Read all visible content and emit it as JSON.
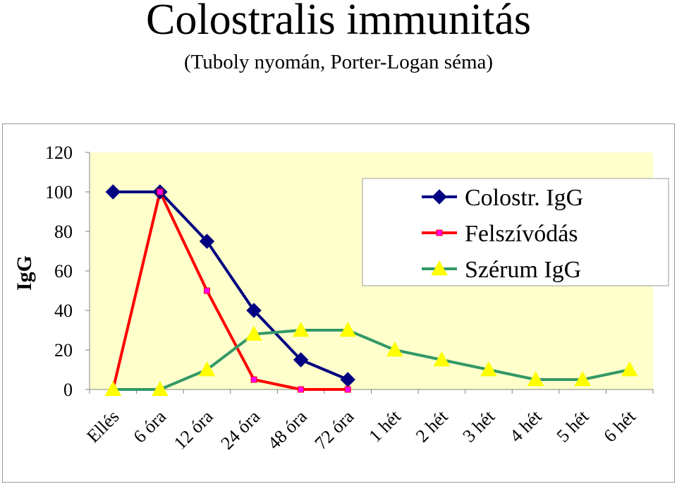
{
  "title": "Colostralis immunitás",
  "subtitle": "(Tuboly nyomán, Porter-Logan séma)",
  "chart_data": {
    "type": "line",
    "ylabel": "IgG",
    "xlabel": "",
    "ylim": [
      0,
      120
    ],
    "yticks": [
      0,
      20,
      40,
      60,
      80,
      100,
      120
    ],
    "categories": [
      "Ellés",
      "6 óra",
      "12 óra",
      "24 óra",
      "48 óra",
      "72 óra",
      "1 hét",
      "2 hét",
      "3 hét",
      "4 hét",
      "5 hét",
      "6 hét"
    ],
    "series": [
      {
        "name": "Colostr. IgG",
        "color": "#000080",
        "marker": "diamond",
        "values": [
          100,
          100,
          75,
          40,
          15,
          5,
          null,
          null,
          null,
          null,
          null,
          null
        ]
      },
      {
        "name": "Felszívódás",
        "color": "#ff0000",
        "marker": "square",
        "marker_fill": "#ff00ff",
        "values": [
          0,
          100,
          50,
          5,
          0,
          0,
          null,
          null,
          null,
          null,
          null,
          null
        ]
      },
      {
        "name": "Szérum IgG",
        "color": "#339966",
        "marker": "triangle",
        "marker_fill": "#ffff00",
        "values": [
          0,
          0,
          10,
          28,
          30,
          30,
          20,
          15,
          10,
          5,
          5,
          10
        ]
      }
    ],
    "plot_background": "#ffffcc",
    "grid": false,
    "legend_position": "top-right"
  }
}
